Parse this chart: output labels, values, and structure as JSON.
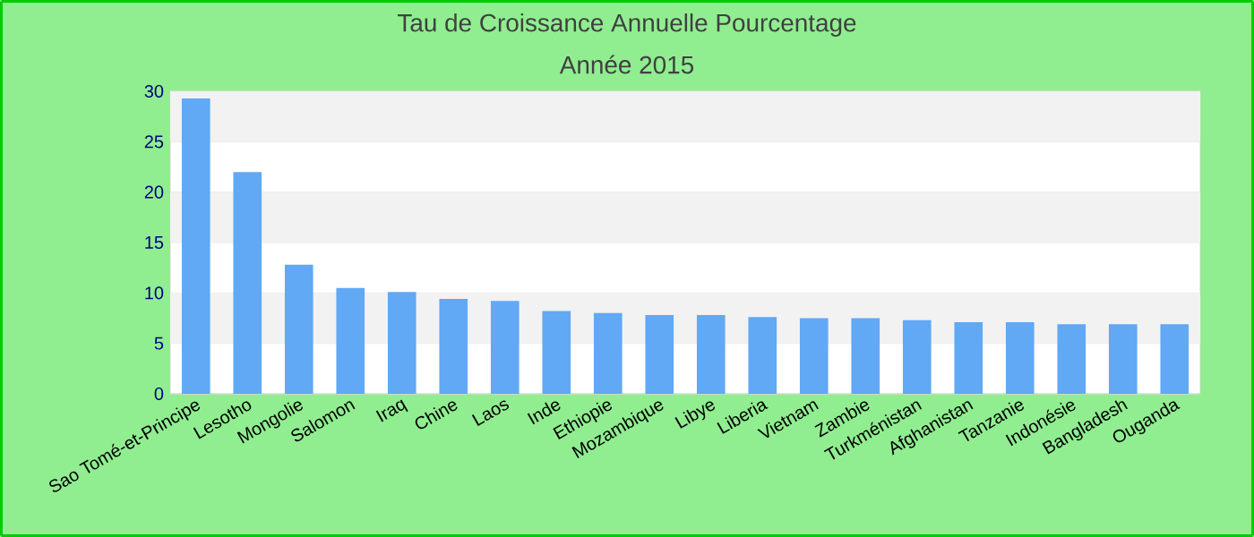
{
  "chart_data": {
    "type": "bar",
    "title": "Tau de Croissance Annuelle  Pourcentage",
    "subtitle": "Année 2015",
    "categories": [
      "Sao Tomé-et-Principe",
      "Lesotho",
      "Mongolie",
      "Salomon",
      "Iraq",
      "Chine",
      "Laos",
      "Inde",
      "Ethiopie",
      "Mozambique",
      "Libye",
      "Liberia",
      "Vietnam",
      "Zambie",
      "Turkménistan",
      "Afghanistan",
      "Tanzanie",
      "Indonésie",
      "Bangladesh",
      "Ouganda"
    ],
    "values": [
      29.3,
      22.0,
      12.8,
      10.5,
      10.1,
      9.4,
      9.2,
      8.2,
      8.0,
      7.8,
      7.8,
      7.6,
      7.5,
      7.5,
      7.3,
      7.1,
      7.1,
      6.9,
      6.9,
      6.9
    ],
    "color": "#61a8f5",
    "ylim": [
      0,
      30
    ],
    "yticks": [
      0,
      5,
      10,
      15,
      20,
      25,
      30
    ],
    "grid": "y"
  }
}
